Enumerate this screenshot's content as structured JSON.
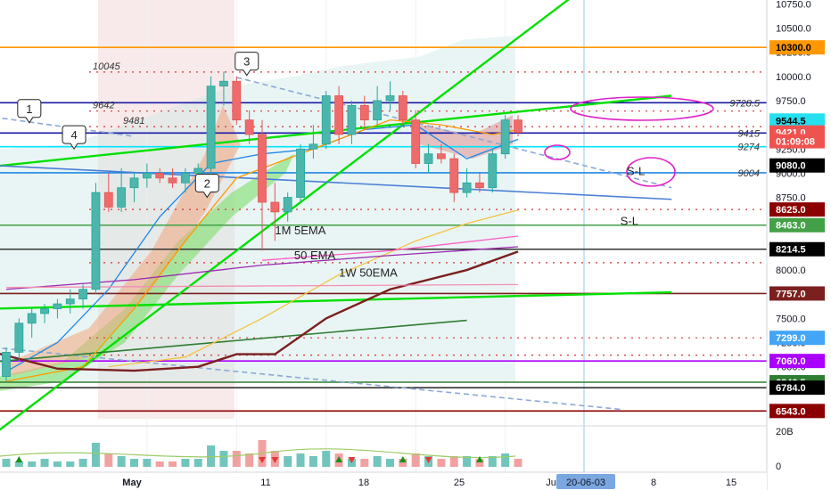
{
  "chart_data": {
    "type": "candlestick",
    "instrument_hint": "BTC daily",
    "y_axis_ticks": [
      "10750.0",
      "10500.0",
      "10250.0",
      "10000.0",
      "9750.0",
      "9500.0",
      "9250.0",
      "9000.0",
      "8750.0",
      "8500.0",
      "8250.0",
      "8000.0",
      "7750.0",
      "7500.0",
      "7250.0",
      "7000.0"
    ],
    "x_axis_ticks": [
      "May",
      "11",
      "18",
      "25",
      "Ju",
      "8",
      "15"
    ],
    "cursor_date": "20-06-03",
    "volume_tick": "20B",
    "volume_zero": "0",
    "ylim": [
      6500,
      10900
    ],
    "x_range_days": [
      0,
      47
    ],
    "candles": [
      {
        "d": 0,
        "o": 6900,
        "h": 7200,
        "l": 6850,
        "c": 7150
      },
      {
        "d": 1,
        "o": 7150,
        "h": 7500,
        "l": 7050,
        "c": 7450
      },
      {
        "d": 2,
        "o": 7450,
        "h": 7600,
        "l": 7300,
        "c": 7550
      },
      {
        "d": 3,
        "o": 7550,
        "h": 7650,
        "l": 7450,
        "c": 7600
      },
      {
        "d": 4,
        "o": 7600,
        "h": 7700,
        "l": 7500,
        "c": 7650
      },
      {
        "d": 5,
        "o": 7650,
        "h": 7800,
        "l": 7550,
        "c": 7700
      },
      {
        "d": 6,
        "o": 7700,
        "h": 7850,
        "l": 7600,
        "c": 7800
      },
      {
        "d": 7,
        "o": 7800,
        "h": 8900,
        "l": 7750,
        "c": 8800
      },
      {
        "d": 8,
        "o": 8800,
        "h": 9000,
        "l": 8600,
        "c": 8650
      },
      {
        "d": 9,
        "o": 8650,
        "h": 9050,
        "l": 8600,
        "c": 8850
      },
      {
        "d": 10,
        "o": 8850,
        "h": 9000,
        "l": 8700,
        "c": 8950
      },
      {
        "d": 11,
        "o": 8950,
        "h": 9100,
        "l": 8850,
        "c": 9000
      },
      {
        "d": 12,
        "o": 9000,
        "h": 9050,
        "l": 8900,
        "c": 8950
      },
      {
        "d": 13,
        "o": 8950,
        "h": 9050,
        "l": 8850,
        "c": 8900
      },
      {
        "d": 14,
        "o": 8900,
        "h": 9050,
        "l": 8800,
        "c": 9000
      },
      {
        "d": 15,
        "o": 9000,
        "h": 9100,
        "l": 8900,
        "c": 9050
      },
      {
        "d": 16,
        "o": 9050,
        "h": 10000,
        "l": 9000,
        "c": 9900
      },
      {
        "d": 17,
        "o": 9900,
        "h": 10050,
        "l": 9700,
        "c": 9950
      },
      {
        "d": 18,
        "o": 9950,
        "h": 10000,
        "l": 9500,
        "c": 9550
      },
      {
        "d": 19,
        "o": 9550,
        "h": 9650,
        "l": 9300,
        "c": 9400
      },
      {
        "d": 20,
        "o": 9400,
        "h": 9550,
        "l": 8200,
        "c": 8700
      },
      {
        "d": 21,
        "o": 8700,
        "h": 8900,
        "l": 8300,
        "c": 8600
      },
      {
        "d": 22,
        "o": 8600,
        "h": 8800,
        "l": 8500,
        "c": 8750
      },
      {
        "d": 23,
        "o": 8750,
        "h": 9300,
        "l": 8700,
        "c": 9250
      },
      {
        "d": 24,
        "o": 9250,
        "h": 9500,
        "l": 9150,
        "c": 9300
      },
      {
        "d": 25,
        "o": 9300,
        "h": 9850,
        "l": 9250,
        "c": 9800
      },
      {
        "d": 26,
        "o": 9800,
        "h": 9900,
        "l": 9300,
        "c": 9400
      },
      {
        "d": 27,
        "o": 9400,
        "h": 9750,
        "l": 9300,
        "c": 9700
      },
      {
        "d": 28,
        "o": 9700,
        "h": 9800,
        "l": 9450,
        "c": 9550
      },
      {
        "d": 29,
        "o": 9550,
        "h": 9900,
        "l": 9500,
        "c": 9750
      },
      {
        "d": 30,
        "o": 9750,
        "h": 9950,
        "l": 9650,
        "c": 9800
      },
      {
        "d": 31,
        "o": 9800,
        "h": 9850,
        "l": 9500,
        "c": 9550
      },
      {
        "d": 32,
        "o": 9550,
        "h": 9650,
        "l": 9050,
        "c": 9100
      },
      {
        "d": 33,
        "o": 9100,
        "h": 9300,
        "l": 9000,
        "c": 9200
      },
      {
        "d": 34,
        "o": 9200,
        "h": 9300,
        "l": 9100,
        "c": 9150
      },
      {
        "d": 35,
        "o": 9150,
        "h": 9200,
        "l": 8700,
        "c": 8800
      },
      {
        "d": 36,
        "o": 8800,
        "h": 9050,
        "l": 8750,
        "c": 8900
      },
      {
        "d": 37,
        "o": 8900,
        "h": 9000,
        "l": 8800,
        "c": 8850
      },
      {
        "d": 38,
        "o": 8850,
        "h": 9250,
        "l": 8800,
        "c": 9200
      },
      {
        "d": 39,
        "o": 9200,
        "h": 9600,
        "l": 9150,
        "c": 9550
      },
      {
        "d": 40,
        "o": 9550,
        "h": 9600,
        "l": 9380,
        "c": 9421
      }
    ],
    "horizontal_levels": [
      {
        "price": 10300,
        "color": "#ff9800"
      },
      {
        "price": 9728.5,
        "color": "#1a1aa6",
        "label": "9728.5"
      },
      {
        "price": 9415,
        "color": "#1a1aa6",
        "label": "9415"
      },
      {
        "price": 9274,
        "color": "#00e5ff",
        "label": "9274"
      },
      {
        "price": 9004,
        "color": "#1e88e5",
        "label": "9004"
      },
      {
        "price": 8463,
        "color": "#43a047"
      },
      {
        "price": 8214.5,
        "color": "#333333"
      },
      {
        "price": 7757,
        "color": "#7b1f1f"
      },
      {
        "price": 7060,
        "color": "#aa00ff"
      },
      {
        "price": 6840.5,
        "color": "#2e7d32"
      },
      {
        "price": 6784,
        "color": "#333333"
      },
      {
        "price": 6543,
        "color": "#8b0000"
      }
    ],
    "dotted_levels": [
      {
        "price": 10045,
        "label": "10045"
      },
      {
        "price": 9642,
        "label": "9642"
      },
      {
        "price": 9481,
        "label": "9481"
      },
      {
        "price": 8625
      },
      {
        "price": 8075
      },
      {
        "price": 7299
      },
      {
        "price": 7120
      }
    ],
    "price_tags": [
      {
        "price": 10300,
        "label": "10300.0",
        "bg": "#ff9800",
        "fg": "#000000"
      },
      {
        "price": 9544.5,
        "label": "9544.5",
        "bg": "#26e0f0",
        "fg": "#000000"
      },
      {
        "price": 9421,
        "label": "9421.0",
        "bg": "#ef5350",
        "fg": "#ffffff"
      },
      {
        "price": 9330,
        "label": "01:09:08",
        "bg": "#ef5350",
        "fg": "#ffffff"
      },
      {
        "price": 9080,
        "label": "9080.0",
        "bg": "#000000",
        "fg": "#ffffff"
      },
      {
        "price": 8625,
        "label": "8625.0",
        "bg": "#8b0000",
        "fg": "#ffffff"
      },
      {
        "price": 8463,
        "label": "8463.0",
        "bg": "#43a047",
        "fg": "#ffffff"
      },
      {
        "price": 8214.5,
        "label": "8214.5",
        "bg": "#000000",
        "fg": "#ffffff"
      },
      {
        "price": 7757,
        "label": "7757.0",
        "bg": "#7b1f1f",
        "fg": "#ffffff"
      },
      {
        "price": 7299,
        "label": "7299.0",
        "bg": "#42a5f5",
        "fg": "#ffffff"
      },
      {
        "price": 7060,
        "label": "7060.0",
        "bg": "#aa00ff",
        "fg": "#ffffff"
      },
      {
        "price": 6840.5,
        "label": "6840.5",
        "bg": "#2e7d32",
        "fg": "#ffffff"
      },
      {
        "price": 6784,
        "label": "6784.0",
        "bg": "#000000",
        "fg": "#ffffff"
      },
      {
        "price": 6543,
        "label": "6543.0",
        "bg": "#8b0000",
        "fg": "#ffffff"
      }
    ],
    "annotations": [
      {
        "text": "1M 5EMA",
        "d": 21,
        "price": 8370
      },
      {
        "text": "50 EMA",
        "d": 22.5,
        "price": 8110
      },
      {
        "text": "1W 50EMA",
        "d": 26,
        "price": 7930
      },
      {
        "text": "S-L",
        "d": 48.5,
        "price": 8980
      },
      {
        "text": "S-L",
        "d": 48,
        "price": 8463
      }
    ],
    "callouts": [
      {
        "text": "1",
        "d": 1.8,
        "price": 9650
      },
      {
        "text": "2",
        "d": 15.7,
        "price": 8880
      },
      {
        "text": "3",
        "d": 18.8,
        "price": 10140
      },
      {
        "text": "4",
        "d": 5.3,
        "price": 9380
      }
    ],
    "trendlines": [
      {
        "color": "#00e000",
        "from": [
          -1,
          6300
        ],
        "to": [
          52,
          11600
        ]
      },
      {
        "color": "#00e000",
        "from": [
          -1,
          9070
        ],
        "to": [
          52,
          9800
        ]
      },
      {
        "color": "#00e000",
        "from": [
          -1,
          7600
        ],
        "to": [
          52,
          7770
        ]
      },
      {
        "color": "#4a7fd6",
        "from": [
          -1,
          9080
        ],
        "to": [
          52,
          8730
        ]
      },
      {
        "color": "#8aa9d6",
        "from": [
          18,
          9990
        ],
        "to": [
          52,
          8850
        ]
      },
      {
        "color": "#8aa9d6",
        "from": [
          -1,
          9580
        ],
        "to": [
          10,
          9380
        ]
      },
      {
        "color": "#8aa9d6",
        "from": [
          -1,
          7200
        ],
        "to": [
          48,
          6560
        ]
      },
      {
        "color": "#2e7d32",
        "from": [
          -1,
          7050
        ],
        "to": [
          36,
          7480
        ]
      }
    ],
    "moving_averages": [
      {
        "color": "#1e88e5",
        "points": [
          [
            0,
            6950
          ],
          [
            4,
            7250
          ],
          [
            8,
            7800
          ],
          [
            12,
            8550
          ],
          [
            16,
            9100
          ],
          [
            20,
            9200
          ],
          [
            24,
            9250
          ],
          [
            28,
            9450
          ],
          [
            32,
            9500
          ],
          [
            36,
            9150
          ],
          [
            40,
            9350
          ]
        ]
      },
      {
        "color": "#ff9800",
        "points": [
          [
            0,
            6850
          ],
          [
            6,
            7000
          ],
          [
            10,
            7600
          ],
          [
            14,
            8300
          ],
          [
            18,
            8950
          ],
          [
            22,
            9150
          ],
          [
            26,
            9350
          ],
          [
            30,
            9550
          ],
          [
            34,
            9500
          ],
          [
            38,
            9400
          ],
          [
            40,
            9450
          ]
        ]
      },
      {
        "color": "#f5c242",
        "points": [
          [
            8,
            7000
          ],
          [
            14,
            7100
          ],
          [
            20,
            7500
          ],
          [
            26,
            7950
          ],
          [
            32,
            8300
          ],
          [
            36,
            8480
          ],
          [
            40,
            8620
          ]
        ]
      },
      {
        "color": "#7b1f1f",
        "points": [
          [
            -1,
            7150
          ],
          [
            4,
            6980
          ],
          [
            10,
            6960
          ],
          [
            15,
            7000
          ],
          [
            18,
            7130
          ],
          [
            21,
            7130
          ],
          [
            25,
            7500
          ],
          [
            30,
            7800
          ],
          [
            36,
            8000
          ],
          [
            40,
            8190
          ]
        ]
      },
      {
        "color": "#9c27b0",
        "points": [
          [
            0,
            7800
          ],
          [
            10,
            7900
          ],
          [
            20,
            8050
          ],
          [
            30,
            8150
          ],
          [
            40,
            8240
          ]
        ]
      },
      {
        "color": "#ff5ec8",
        "points": [
          [
            20,
            8100
          ],
          [
            30,
            8200
          ],
          [
            40,
            8350
          ]
        ]
      },
      {
        "color": "#f48fb1",
        "points": [
          [
            0,
            7820
          ],
          [
            40,
            7850
          ]
        ]
      }
    ],
    "volume": [
      3,
      2,
      2,
      3,
      2,
      2,
      3,
      9,
      5,
      4,
      3,
      3,
      2,
      2,
      3,
      3,
      8,
      6,
      6,
      5,
      10,
      6,
      4,
      5,
      4,
      6,
      5,
      3,
      3,
      4,
      3,
      3,
      5,
      4,
      3,
      4,
      4,
      3,
      4,
      5,
      3
    ],
    "volume_signals": [
      {
        "d": 1,
        "dir": "up"
      },
      {
        "d": 20,
        "dir": "down"
      },
      {
        "d": 21,
        "dir": "down"
      },
      {
        "d": 26,
        "dir": "up"
      },
      {
        "d": 27,
        "dir": "down"
      },
      {
        "d": 31,
        "dir": "up"
      },
      {
        "d": 33,
        "dir": "down"
      },
      {
        "d": 37,
        "dir": "up"
      }
    ]
  }
}
